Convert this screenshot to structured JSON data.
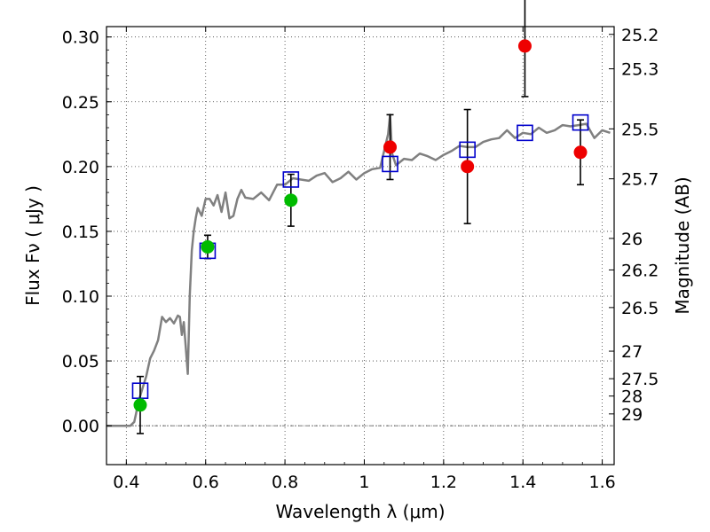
{
  "chart_data": {
    "type": "scatter",
    "xlabel": "Wavelength  λ (μm)",
    "ylabel": "Flux  Fν  ( μJy )",
    "ylabel_right": "Magnitude (AB)",
    "xlim": [
      0.35,
      1.63
    ],
    "ylim": [
      -0.03,
      0.308
    ],
    "x_ticks": [
      0.4,
      0.6,
      0.8,
      1.0,
      1.2,
      1.4,
      1.6
    ],
    "x_tick_labels": [
      "0.4",
      "0.6",
      "0.8",
      "1",
      "1.2",
      "1.4",
      "1.6"
    ],
    "y_ticks": [
      0.0,
      0.05,
      0.1,
      0.15,
      0.2,
      0.25,
      0.3
    ],
    "y_tick_labels": [
      "0.00",
      "0.05",
      "0.10",
      "0.15",
      "0.20",
      "0.25",
      "0.30"
    ],
    "mag_ticks": [
      "25.2",
      "25.3",
      "25.5",
      "25.7",
      "26",
      "26.2",
      "26.5",
      "27",
      "27.5",
      "28",
      "29"
    ],
    "grid": true,
    "colors": {
      "model": "#808080",
      "model_points": "#0000cc",
      "green_points": "#00bb00",
      "red_points": "#ee0000",
      "error_bars": "#000000"
    },
    "model_spectrum": {
      "x": [
        0.35,
        0.4,
        0.41,
        0.42,
        0.425,
        0.43,
        0.44,
        0.45,
        0.46,
        0.47,
        0.48,
        0.49,
        0.5,
        0.51,
        0.52,
        0.53,
        0.535,
        0.54,
        0.545,
        0.55,
        0.555,
        0.56,
        0.565,
        0.57,
        0.575,
        0.58,
        0.59,
        0.6,
        0.61,
        0.62,
        0.63,
        0.64,
        0.65,
        0.66,
        0.67,
        0.68,
        0.69,
        0.7,
        0.72,
        0.74,
        0.76,
        0.78,
        0.8,
        0.82,
        0.84,
        0.86,
        0.88,
        0.9,
        0.92,
        0.94,
        0.96,
        0.98,
        1.0,
        1.02,
        1.04,
        1.06,
        1.065,
        1.07,
        1.08,
        1.1,
        1.12,
        1.14,
        1.16,
        1.18,
        1.2,
        1.22,
        1.24,
        1.26,
        1.28,
        1.3,
        1.32,
        1.34,
        1.36,
        1.38,
        1.4,
        1.42,
        1.44,
        1.46,
        1.48,
        1.5,
        1.52,
        1.54,
        1.56,
        1.58,
        1.6,
        1.62
      ],
      "y": [
        0.0,
        0.0,
        0.0,
        0.003,
        0.01,
        0.018,
        0.028,
        0.038,
        0.052,
        0.058,
        0.066,
        0.084,
        0.08,
        0.083,
        0.079,
        0.085,
        0.084,
        0.07,
        0.08,
        0.06,
        0.04,
        0.1,
        0.135,
        0.15,
        0.16,
        0.168,
        0.162,
        0.175,
        0.175,
        0.17,
        0.178,
        0.165,
        0.18,
        0.16,
        0.162,
        0.175,
        0.182,
        0.176,
        0.175,
        0.18,
        0.174,
        0.186,
        0.186,
        0.191,
        0.19,
        0.189,
        0.193,
        0.195,
        0.188,
        0.191,
        0.196,
        0.19,
        0.195,
        0.198,
        0.199,
        0.225,
        0.24,
        0.21,
        0.201,
        0.206,
        0.205,
        0.21,
        0.208,
        0.205,
        0.209,
        0.212,
        0.216,
        0.215,
        0.215,
        0.219,
        0.221,
        0.222,
        0.228,
        0.222,
        0.226,
        0.225,
        0.23,
        0.226,
        0.228,
        0.232,
        0.231,
        0.232,
        0.233,
        0.222,
        0.228,
        0.226
      ]
    },
    "model_points": {
      "x": [
        0.435,
        0.605,
        0.815,
        1.065,
        1.26,
        1.405,
        1.545
      ],
      "y": [
        0.027,
        0.135,
        0.19,
        0.202,
        0.213,
        0.226,
        0.234
      ]
    },
    "observed_green": {
      "x": [
        0.435,
        0.605,
        0.815
      ],
      "y": [
        0.016,
        0.138,
        0.174
      ],
      "err": [
        0.022,
        0.009,
        0.02
      ]
    },
    "observed_red": {
      "x": [
        1.065,
        1.26,
        1.405,
        1.545
      ],
      "y": [
        0.215,
        0.2,
        0.293,
        0.211
      ],
      "err": [
        0.025,
        0.044,
        0.039,
        0.025
      ]
    }
  }
}
